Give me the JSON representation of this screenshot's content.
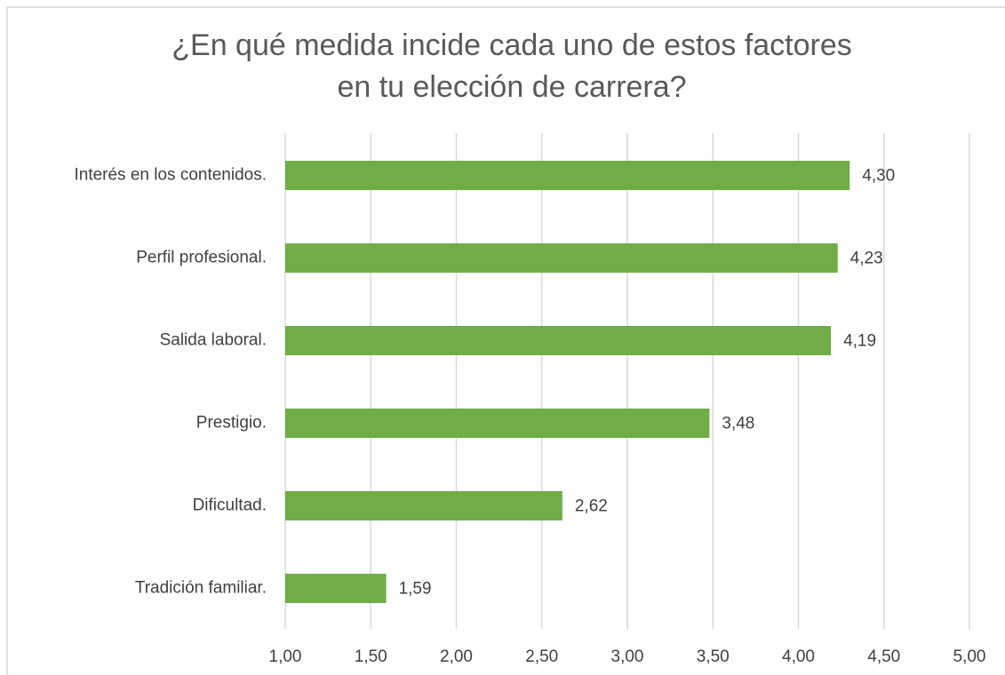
{
  "chart_data": {
    "type": "bar",
    "orientation": "horizontal",
    "title": [
      "¿En qué medida incide cada uno de estos factores",
      "en tu elección de carrera?"
    ],
    "categories": [
      "Interés en los contenidos.",
      "Perfil profesional.",
      "Salida laboral.",
      "Prestigio.",
      "Dificultad.",
      "Tradición familiar."
    ],
    "values": [
      4.3,
      4.23,
      4.19,
      3.48,
      2.62,
      1.59
    ],
    "value_labels": [
      "4,30",
      "4,23",
      "4,19",
      "3,48",
      "2,62",
      "1,59"
    ],
    "color": "#70ad47",
    "xlim": [
      1,
      5
    ],
    "xticks": [
      {
        "value": 1,
        "label": "1,00"
      },
      {
        "value": 1.5,
        "label": "1,50"
      },
      {
        "value": 2,
        "label": "2,00"
      },
      {
        "value": 2.5,
        "label": "2,50"
      },
      {
        "value": 3,
        "label": "3,00"
      },
      {
        "value": 3.5,
        "label": "3,50"
      },
      {
        "value": 4,
        "label": "4,00"
      },
      {
        "value": 4.5,
        "label": "4,50"
      },
      {
        "value": 5,
        "label": "5,00"
      }
    ],
    "grid": true
  }
}
